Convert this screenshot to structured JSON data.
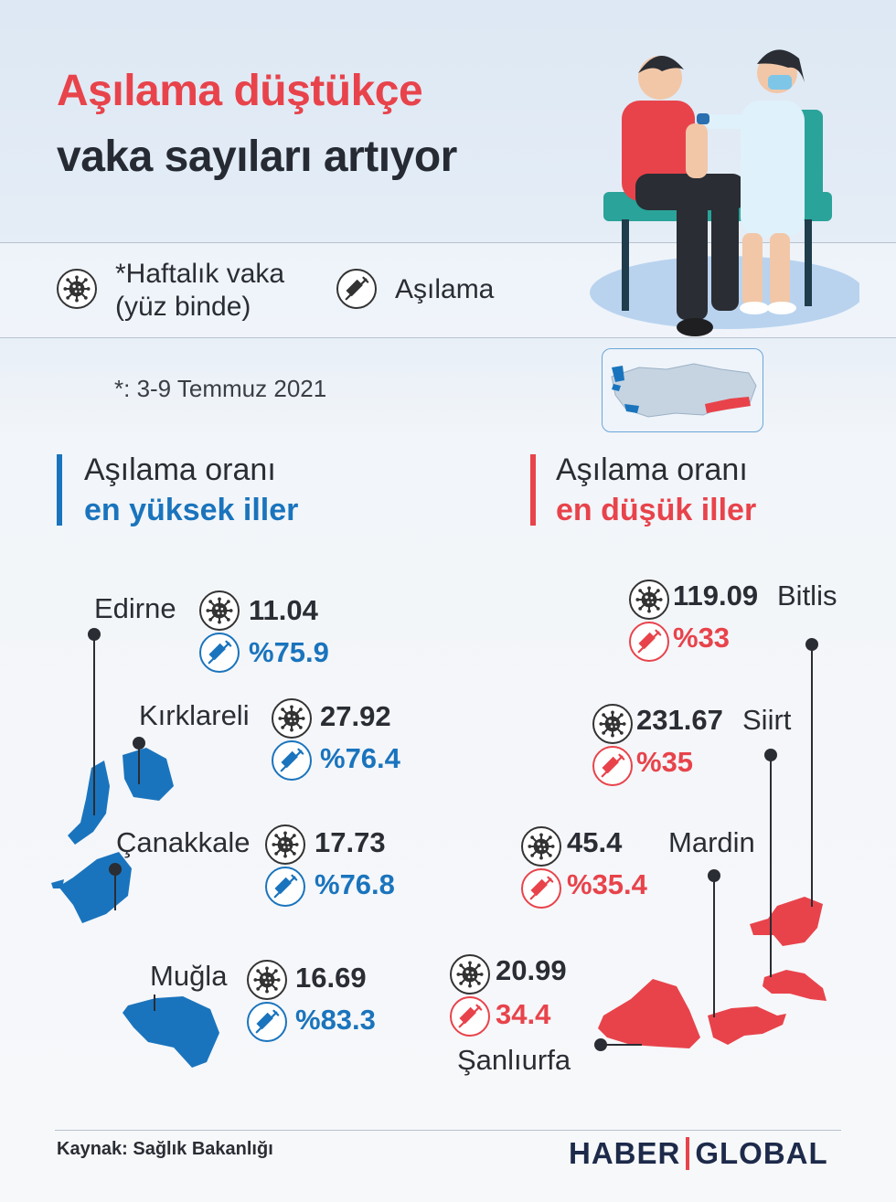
{
  "title": {
    "line1": "Aşılama düştükçe",
    "line2": "vaka sayıları artıyor"
  },
  "legend": {
    "case_label_line1": "*Haftalık vaka",
    "case_label_line2": "(yüz binde)",
    "case_icon": "virus-icon",
    "vaccine_label": "Aşılama",
    "vaccine_icon": "syringe-icon"
  },
  "date_note": "*: 3-9 Temmuz 2021",
  "highest": {
    "title_line1": "Aşılama oranı",
    "title_line2": "en yüksek iller",
    "color": "#1a74bd",
    "provinces": [
      {
        "name": "Edirne",
        "cases": "11.04",
        "vaccination": "%75.9"
      },
      {
        "name": "Kırklareli",
        "cases": "27.92",
        "vaccination": "%76.4"
      },
      {
        "name": "Çanakkale",
        "cases": "17.73",
        "vaccination": "%76.8"
      },
      {
        "name": "Muğla",
        "cases": "16.69",
        "vaccination": "%83.3"
      }
    ]
  },
  "lowest": {
    "title_line1": "Aşılama oranı",
    "title_line2": "en düşük iller",
    "color": "#e8434b",
    "provinces": [
      {
        "name": "Bitlis",
        "cases": "119.09",
        "vaccination": "%33"
      },
      {
        "name": "Siirt",
        "cases": "231.67",
        "vaccination": "%35"
      },
      {
        "name": "Mardin",
        "cases": "45.4",
        "vaccination": "%35.4"
      },
      {
        "name": "Şanlıurfa",
        "cases": "20.99",
        "vaccination": "34.4"
      }
    ]
  },
  "footer": {
    "source": "Kaynak: Sağlık Bakanlığı",
    "logo_left": "HABER",
    "logo_right": "GLOBAL"
  }
}
